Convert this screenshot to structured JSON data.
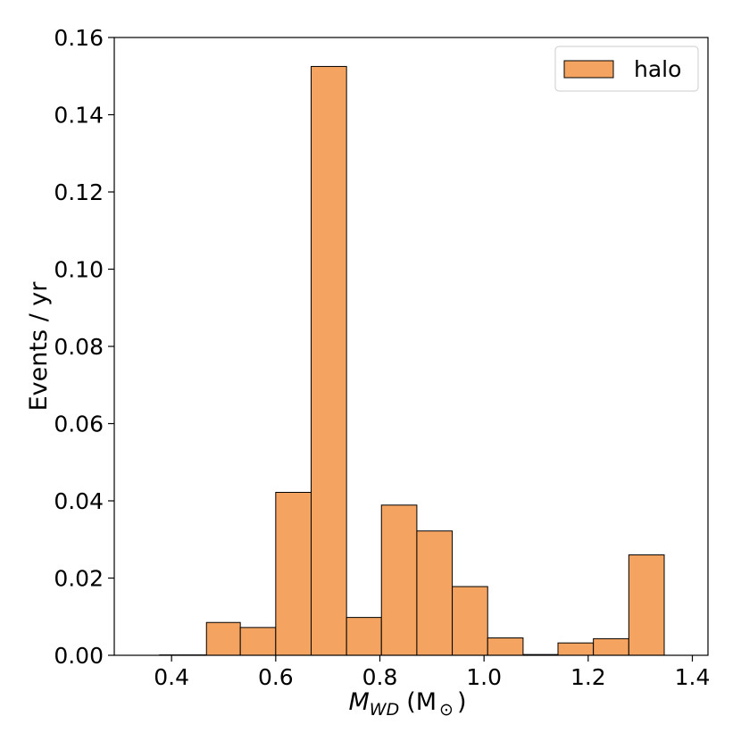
{
  "chart_data": {
    "type": "bar",
    "histogram": true,
    "bin_edges": [
      0.335,
      0.375,
      0.415,
      0.455,
      0.495,
      0.535,
      0.575,
      0.615,
      0.655,
      0.695,
      0.735,
      0.775,
      0.815,
      0.855,
      0.895,
      0.935,
      0.975,
      1.015,
      1.055,
      1.095,
      1.135,
      1.175,
      1.215,
      1.255,
      1.295,
      1.335,
      1.375
    ],
    "bins": [
      {
        "x0": 0.377,
        "x1": 0.467,
        "y": 0.0001
      },
      {
        "x0": 0.467,
        "x1": 0.532,
        "y": 0.0085
      },
      {
        "x0": 0.532,
        "x1": 0.6,
        "y": 0.0072
      },
      {
        "x0": 0.6,
        "x1": 0.668,
        "y": 0.0422
      },
      {
        "x0": 0.668,
        "x1": 0.736,
        "y": 0.1525
      },
      {
        "x0": 0.736,
        "x1": 0.803,
        "y": 0.0098
      },
      {
        "x0": 0.803,
        "x1": 0.871,
        "y": 0.0389
      },
      {
        "x0": 0.871,
        "x1": 0.939,
        "y": 0.0322
      },
      {
        "x0": 0.939,
        "x1": 1.007,
        "y": 0.0178
      },
      {
        "x0": 1.007,
        "x1": 1.075,
        "y": 0.0045
      },
      {
        "x0": 1.075,
        "x1": 1.142,
        "y": 0.0002
      },
      {
        "x0": 1.142,
        "x1": 1.21,
        "y": 0.0032
      },
      {
        "x0": 1.21,
        "x1": 1.278,
        "y": 0.0043
      },
      {
        "x0": 1.278,
        "x1": 1.346,
        "y": 0.026
      }
    ],
    "series": [
      {
        "name": "halo",
        "color": "#f4a460"
      }
    ],
    "xlabel_main": "M",
    "xlabel_sub": "WD",
    "xlabel_unit": "(M",
    "xlabel_unit_sub": "⊙",
    "xlabel_close": ")",
    "ylabel": "Events / yr",
    "xlim": [
      0.29,
      1.43
    ],
    "ylim": [
      0,
      0.16
    ],
    "xticks": [
      0.4,
      0.6,
      0.8,
      1.0,
      1.2,
      1.4
    ],
    "xtick_labels": [
      "0.4",
      "0.6",
      "0.8",
      "1.0",
      "1.2",
      "1.4"
    ],
    "yticks": [
      0,
      0.02,
      0.04,
      0.06,
      0.08,
      0.1,
      0.12,
      0.14,
      0.16
    ],
    "ytick_labels": [
      "0.00",
      "0.02",
      "0.04",
      "0.06",
      "0.08",
      "0.10",
      "0.12",
      "0.14",
      "0.16"
    ],
    "legend": {
      "position": "top-right",
      "label": "halo"
    },
    "grid": false
  }
}
